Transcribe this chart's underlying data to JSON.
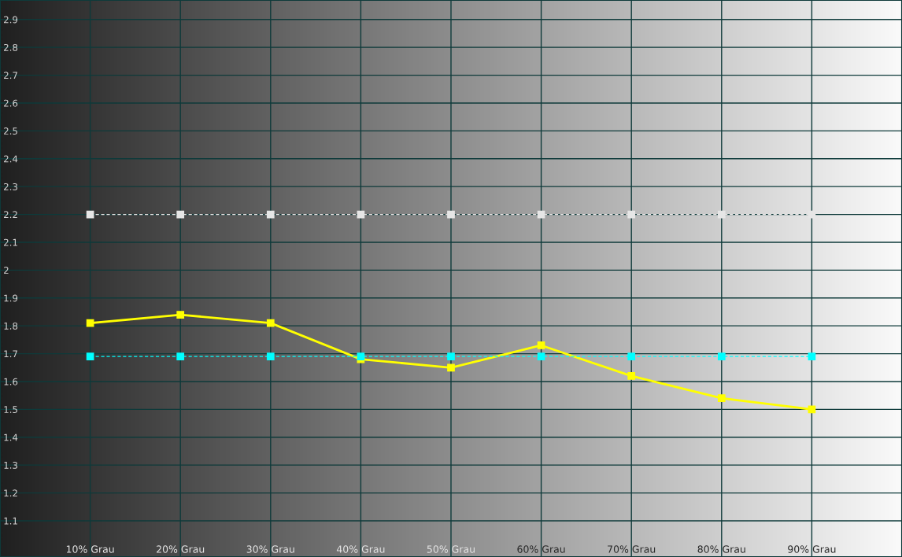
{
  "chart_data": {
    "type": "line",
    "categories": [
      "10% Grau",
      "20% Grau",
      "30% Grau",
      "40% Grau",
      "50% Grau",
      "60% Grau",
      "70% Grau",
      "80% Grau",
      "90% Grau"
    ],
    "series": [
      {
        "color": "#e6e6e6",
        "line_style": "dashed",
        "values": [
          2.2,
          2.2,
          2.2,
          2.2,
          2.2,
          2.2,
          2.2,
          2.2,
          2.2
        ]
      },
      {
        "color": "#ffff00",
        "values": [
          1.81,
          1.84,
          1.81,
          1.68,
          1.65,
          1.73,
          1.62,
          1.54,
          1.5
        ]
      },
      {
        "color": "#00ffff",
        "line_style": "dashed",
        "values": [
          1.69,
          1.69,
          1.69,
          1.69,
          1.69,
          1.69,
          1.69,
          1.69,
          1.69
        ]
      }
    ],
    "marker": "square",
    "line_style": "solid",
    "ylim": [
      0.97,
      2.97
    ],
    "yticks": [
      1.1,
      1.2,
      1.3,
      1.4,
      1.5,
      1.6,
      1.7,
      1.8,
      1.9,
      2,
      2.1,
      2.2,
      2.3,
      2.4,
      2.5,
      2.6,
      2.7,
      2.8,
      2.9
    ],
    "grid": true
  }
}
